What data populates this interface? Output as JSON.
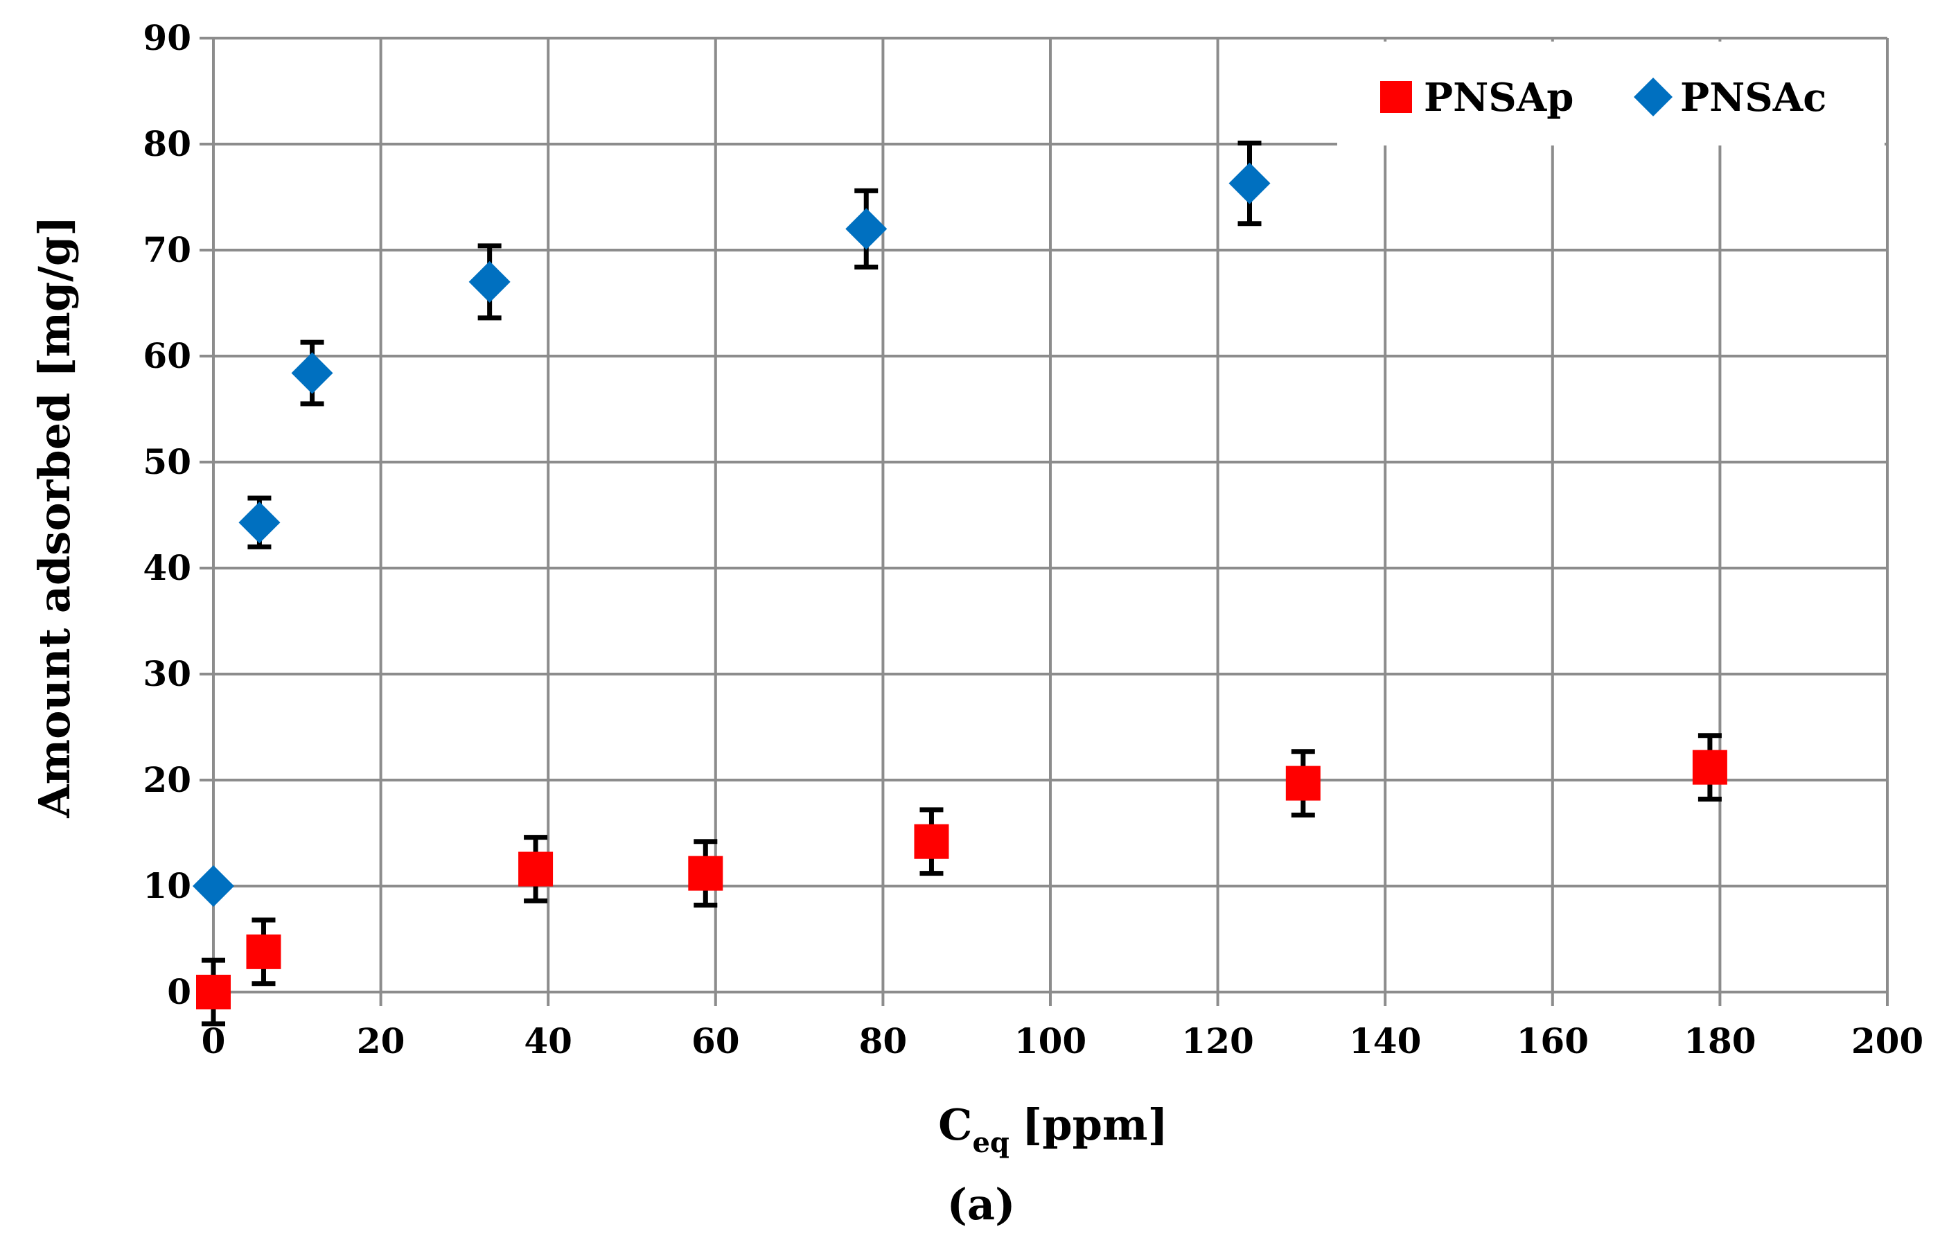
{
  "chart_data": {
    "type": "scatter",
    "title": "",
    "xlabel": "C",
    "xlabel_subscript": "eq",
    "xlabel_unit": "[ppm]",
    "ylabel": "Amount adsorbed [mg/g]",
    "caption": "(a)",
    "xlim": [
      0,
      200
    ],
    "ylim": [
      0,
      90
    ],
    "x_ticks": [
      0,
      20,
      40,
      60,
      80,
      100,
      120,
      140,
      160,
      180,
      200
    ],
    "y_ticks": [
      0,
      10,
      20,
      30,
      40,
      50,
      60,
      70,
      80,
      90
    ],
    "grid": true,
    "legend_position": "top-right",
    "series": [
      {
        "name": "PNSAp",
        "marker": "square",
        "color": "#ff0000",
        "x": [
          0,
          6,
          38.5,
          58.8,
          85.8,
          130.2,
          178.8
        ],
        "y": [
          0,
          3.8,
          11.6,
          11.2,
          14.2,
          19.7,
          21.2
        ],
        "error": [
          3,
          3,
          3,
          3,
          3,
          3,
          3
        ]
      },
      {
        "name": "PNSAc",
        "marker": "diamond",
        "color": "#0070c0",
        "x": [
          0,
          5.5,
          11.8,
          33,
          78,
          123.8
        ],
        "y": [
          10,
          44.3,
          58.4,
          67,
          72,
          76.3
        ],
        "error": [
          null,
          2.3,
          2.9,
          3.4,
          3.6,
          3.8
        ]
      }
    ]
  }
}
